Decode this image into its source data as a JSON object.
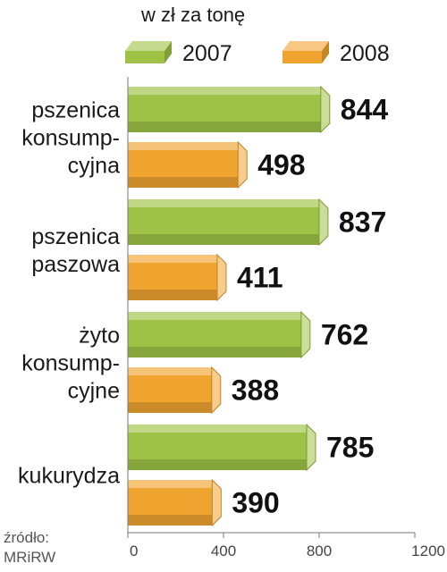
{
  "chart_data": {
    "type": "bar",
    "orientation": "horizontal",
    "unit_label": "w zł za tonę",
    "categories": [
      [
        "pszenica",
        "konsump-",
        "cyjna"
      ],
      [
        "pszenica",
        "paszowa"
      ],
      [
        "żyto",
        "konsump-",
        "cyjne"
      ],
      [
        "kukurydza"
      ]
    ],
    "series": [
      {
        "name": "2007",
        "color": "#9ec245",
        "values": [
          844,
          837,
          762,
          785
        ]
      },
      {
        "name": "2008",
        "color": "#f0a430",
        "values": [
          498,
          411,
          388,
          390
        ]
      }
    ],
    "xlim": [
      0,
      1200
    ],
    "xticks": [
      "0",
      "400",
      "800",
      "1200"
    ],
    "source": [
      "źródło:",
      "MRiRW"
    ],
    "legend_position": "top",
    "grid": false
  }
}
